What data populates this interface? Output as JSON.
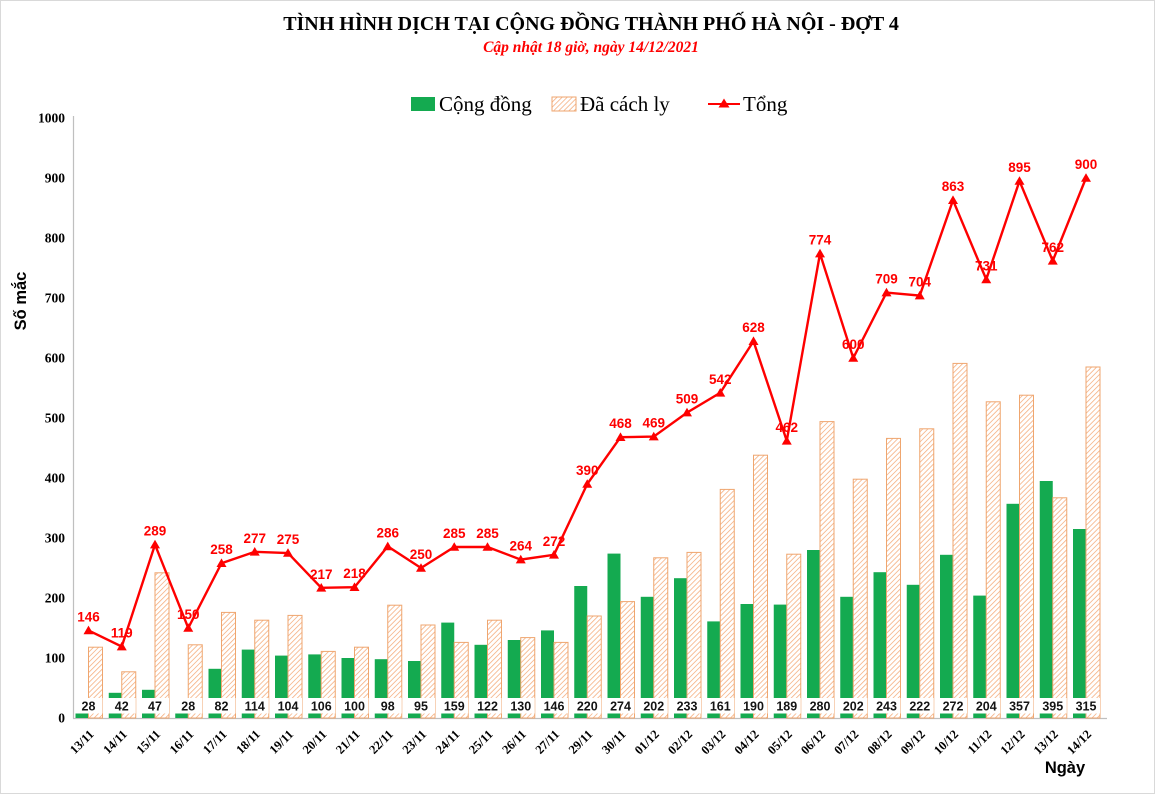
{
  "header": {
    "title": "TÌNH HÌNH DỊCH TẠI CỘNG ĐỒNG THÀNH PHỐ HÀ NỘI - ĐỢT 4",
    "subtitle": "Cập nhật 18 giờ, ngày 14/12/2021"
  },
  "chart_data": {
    "type": "bar",
    "title": "TÌNH HÌNH DỊCH TẠI CỘNG ĐỒNG THÀNH PHỐ HÀ NỘI - ĐỢT 4",
    "subtitle": "Cập nhật 18 giờ, ngày 14/12/2021",
    "xlabel": "Ngày",
    "ylabel": "Số mắc",
    "ylim": [
      0,
      1000
    ],
    "ytick_step": 100,
    "grid": false,
    "legend_position": "top-center",
    "categories": [
      "13/11",
      "14/11",
      "15/11",
      "16/11",
      "17/11",
      "18/11",
      "19/11",
      "20/11",
      "21/11",
      "22/11",
      "23/11",
      "24/11",
      "25/11",
      "26/11",
      "27/11",
      "29/11",
      "30/11",
      "01/12",
      "02/12",
      "03/12",
      "04/12",
      "05/12",
      "06/12",
      "07/12",
      "08/12",
      "09/12",
      "10/12",
      "11/12",
      "12/12",
      "13/12",
      "14/12"
    ],
    "series": [
      {
        "name": "Cộng đồng",
        "type": "bar",
        "style": "solid",
        "color": "#14aa50",
        "data_labels": "base-white-box",
        "values": [
          28,
          42,
          47,
          28,
          82,
          114,
          104,
          106,
          100,
          98,
          95,
          159,
          122,
          130,
          146,
          220,
          274,
          202,
          233,
          161,
          190,
          189,
          280,
          202,
          243,
          222,
          272,
          204,
          357,
          395,
          315
        ]
      },
      {
        "name": "Đã cách ly",
        "type": "bar",
        "style": "hatched-diagonal",
        "color": "#f5b183",
        "border_color": "#efa66f",
        "data_labels": "none",
        "values": [
          118,
          77,
          242,
          122,
          176,
          163,
          171,
          111,
          118,
          188,
          155,
          126,
          163,
          134,
          126,
          170,
          194,
          267,
          276,
          381,
          438,
          273,
          494,
          398,
          466,
          482,
          591,
          527,
          538,
          367,
          585
        ]
      },
      {
        "name": "Tổng",
        "type": "line",
        "marker": "triangle",
        "color": "#fe0000",
        "data_labels": "above",
        "values": [
          146,
          119,
          289,
          150,
          258,
          277,
          275,
          217,
          218,
          286,
          250,
          285,
          285,
          264,
          272,
          390,
          468,
          469,
          509,
          542,
          628,
          462,
          774,
          600,
          709,
          704,
          863,
          731,
          895,
          762,
          900
        ]
      }
    ]
  },
  "colors": {
    "accent_red": "#fe0000",
    "accent_green": "#14aa50",
    "hatch_orange": "#f5b183",
    "hatch_border": "#efa66f",
    "axis_gray": "#bfbfbf"
  }
}
